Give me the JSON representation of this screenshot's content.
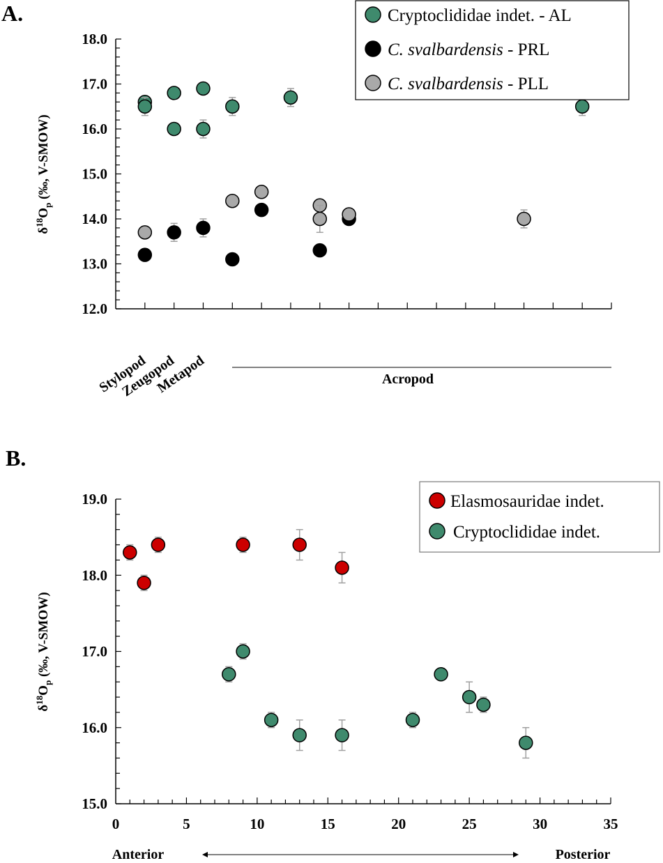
{
  "colors": {
    "green": "#3f8a6d",
    "black": "#000000",
    "grey": "#a9a9a9",
    "red": "#cc0000",
    "errorbar": "#a0a0a0"
  },
  "chart_data": [
    {
      "panel_label": "A.",
      "type": "scatter",
      "ylabel": {
        "delta": "δ",
        "sup": "18",
        "main": "O",
        "sub": "p",
        "rest": " (‰, V-SMOW)"
      },
      "ylim": [
        12.0,
        18.0
      ],
      "yticks": [
        "12.0",
        "13.0",
        "14.0",
        "15.0",
        "16.0",
        "17.0",
        "18.0"
      ],
      "xlim": [
        0,
        17
      ],
      "xcategory_labels": [
        {
          "x": 1,
          "label": "Stylopod"
        },
        {
          "x": 2,
          "label": "Zeugopod"
        },
        {
          "x": 3,
          "label": "Metapod"
        }
      ],
      "xgroup_label": {
        "label": "Acropod",
        "from": 4,
        "to": 17
      },
      "grid": false,
      "legend_position": "top-right",
      "series": [
        {
          "name": "Cryptoclididae indet. - AL",
          "name_italic": "",
          "name_rest": "Cryptoclididae indet. - AL",
          "color": "green",
          "points": [
            [
              1,
              16.6,
              0
            ],
            [
              1,
              16.5,
              0.2
            ],
            [
              2,
              16.8,
              0
            ],
            [
              2,
              16.0,
              0
            ],
            [
              3,
              16.9,
              0
            ],
            [
              3,
              16.0,
              0.2
            ],
            [
              4,
              16.5,
              0.2
            ],
            [
              6,
              16.7,
              0.2
            ],
            [
              16,
              16.5,
              0.2
            ]
          ]
        },
        {
          "name": "C. svalbardensis - PRL",
          "name_italic": "C. svalbardensis",
          "name_rest": " - PRL",
          "color": "black",
          "points": [
            [
              1,
              13.2,
              0
            ],
            [
              2,
              13.7,
              0.2
            ],
            [
              3,
              13.8,
              0.2
            ],
            [
              4,
              13.1,
              0
            ],
            [
              5,
              14.2,
              0
            ],
            [
              7,
              13.3,
              0
            ],
            [
              8,
              14.0,
              0
            ]
          ]
        },
        {
          "name": "C. svalbardensis - PLL",
          "name_italic": "C. svalbardensis",
          "name_rest": " - PLL",
          "color": "grey",
          "points": [
            [
              1,
              13.7,
              0
            ],
            [
              4,
              14.4,
              0
            ],
            [
              5,
              14.6,
              0
            ],
            [
              7,
              14.3,
              0
            ],
            [
              7,
              14.0,
              0.3
            ],
            [
              8,
              14.1,
              0
            ],
            [
              14,
              14.0,
              0.2
            ]
          ]
        }
      ]
    },
    {
      "panel_label": "B.",
      "type": "scatter",
      "ylabel": {
        "delta": "δ",
        "sup": "18",
        "main": "O",
        "sub": "p",
        "rest": " (‰, V-SMOW)"
      },
      "ylim": [
        15.0,
        19.0
      ],
      "yticks": [
        "15.0",
        "16.0",
        "17.0",
        "18.0",
        "19.0"
      ],
      "xlim": [
        0,
        35
      ],
      "xticks": [
        "0",
        "5",
        "10",
        "15",
        "20",
        "25",
        "30",
        "35"
      ],
      "xaxis_annotation": {
        "left": "Anterior",
        "right": "Posterior"
      },
      "grid": false,
      "legend_position": "top-right",
      "series": [
        {
          "name": "Elasmosauridae indet.",
          "color": "red",
          "points": [
            [
              1,
              18.3,
              0.1
            ],
            [
              2,
              17.9,
              0.1
            ],
            [
              3,
              18.4,
              0.1
            ],
            [
              9,
              18.4,
              0.1
            ],
            [
              13,
              18.4,
              0.2
            ],
            [
              16,
              18.1,
              0.2
            ]
          ]
        },
        {
          "name": "Cryptoclididae indet.",
          "color": "green",
          "points": [
            [
              8,
              16.7,
              0.1
            ],
            [
              9,
              17.0,
              0.1
            ],
            [
              11,
              16.1,
              0.1
            ],
            [
              13,
              15.9,
              0.2
            ],
            [
              16,
              15.9,
              0.2
            ],
            [
              21,
              16.1,
              0.1
            ],
            [
              23,
              16.7,
              0
            ],
            [
              25,
              16.4,
              0.2
            ],
            [
              26,
              16.3,
              0.1
            ],
            [
              29,
              15.8,
              0.2
            ]
          ]
        }
      ]
    }
  ]
}
